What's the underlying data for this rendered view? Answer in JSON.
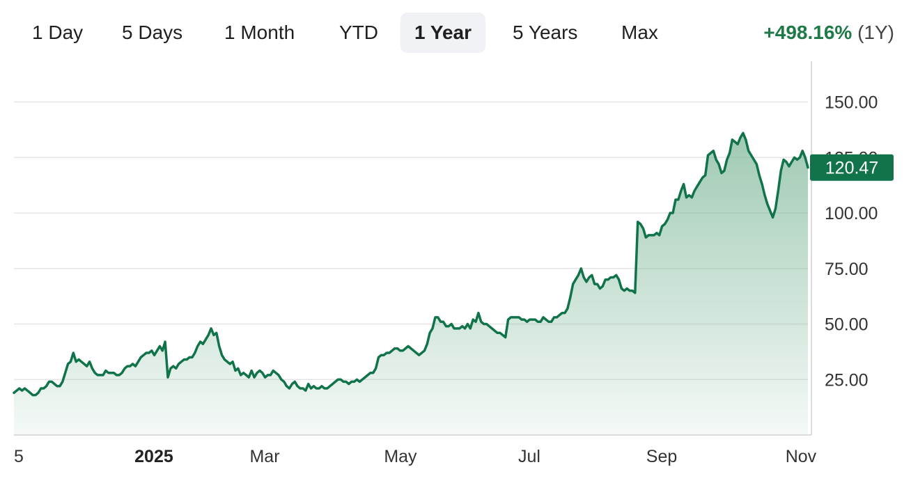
{
  "range_tabs": [
    {
      "label": "1 Day",
      "active": false
    },
    {
      "label": "5 Days",
      "active": false
    },
    {
      "label": "1 Month",
      "active": false
    },
    {
      "label": "YTD",
      "active": false
    },
    {
      "label": "1 Year",
      "active": true
    },
    {
      "label": "5 Years",
      "active": false
    },
    {
      "label": "Max",
      "active": false
    }
  ],
  "change": {
    "percent": "+498.16%",
    "period": "(1Y)"
  },
  "colors": {
    "up": "#1e7a46",
    "line": "#11734a",
    "fill": "#7fb89a",
    "grid": "#e5e5e5"
  },
  "chart_data": {
    "type": "area",
    "y_ticks": [
      "150.00",
      "125.00",
      "100.00",
      "75.00",
      "50.00",
      "25.00"
    ],
    "y_tick_values": [
      150,
      125,
      100,
      75,
      50,
      25
    ],
    "ylim": [
      0,
      165
    ],
    "x_ticks": [
      {
        "label": "5",
        "pos": 0,
        "bold": false
      },
      {
        "label": "2025",
        "pos": 0.1763,
        "bold": true
      },
      {
        "label": "Mar",
        "pos": 0.3158,
        "bold": false
      },
      {
        "label": "May",
        "pos": 0.4868,
        "bold": false
      },
      {
        "label": "Jul",
        "pos": 0.6491,
        "bold": false
      },
      {
        "label": "Sep",
        "pos": 0.8158,
        "bold": false
      },
      {
        "label": "Nov",
        "pos": 0.9912,
        "bold": false
      }
    ],
    "current_price": "120.47",
    "current_value": 120.47,
    "grid": true,
    "series": [
      {
        "values": [
          19,
          20,
          21,
          20,
          21,
          20,
          19,
          18,
          18,
          19,
          21,
          21,
          22,
          24,
          24,
          23,
          22,
          22,
          24,
          28,
          32,
          33,
          37,
          33,
          34,
          33,
          32,
          31,
          33,
          30,
          28,
          27,
          27,
          27,
          29,
          28,
          28,
          28,
          27,
          27,
          28,
          30,
          31,
          31,
          32,
          31,
          33,
          35,
          36,
          37,
          37,
          38,
          36,
          38,
          40,
          38,
          42,
          26,
          30,
          31,
          30,
          32,
          33,
          34,
          34,
          35,
          35,
          37,
          40,
          42,
          41,
          43,
          45,
          48,
          45,
          46,
          40,
          36,
          34,
          33,
          32,
          33,
          29,
          30,
          27,
          28,
          27,
          26,
          29,
          26,
          28,
          29,
          28,
          26,
          27,
          27,
          29,
          28,
          27,
          25,
          24,
          22,
          21,
          23,
          24,
          22,
          21,
          21,
          20,
          23,
          21,
          22,
          21,
          21,
          22,
          21,
          21,
          22,
          23,
          24,
          25,
          25,
          24,
          24,
          23,
          24,
          24,
          25,
          24,
          25,
          26,
          27,
          28,
          28,
          30,
          35,
          36,
          36,
          37,
          37,
          38,
          39,
          39,
          38,
          38,
          39,
          40,
          39,
          38,
          37,
          36,
          37,
          38,
          41,
          46,
          48,
          53,
          53,
          51,
          51,
          49,
          49,
          50,
          48,
          48,
          48,
          49,
          48,
          50,
          48,
          52,
          51,
          55,
          51,
          50,
          50,
          49,
          48,
          47,
          46,
          46,
          45,
          44,
          52,
          53,
          53,
          53,
          53,
          52,
          52,
          51,
          52,
          52,
          52,
          51,
          51,
          53,
          52,
          51,
          51,
          53,
          53,
          54,
          55,
          55,
          57,
          62,
          68,
          70,
          72,
          75,
          71,
          69,
          71,
          72,
          68,
          68,
          66,
          67,
          70,
          70,
          71,
          71,
          72,
          70,
          66,
          65,
          66,
          65,
          65,
          64,
          96,
          95,
          93,
          89,
          90,
          90,
          90,
          91,
          90,
          94,
          95,
          97,
          100,
          100,
          106,
          106,
          110,
          113,
          107,
          108,
          107,
          110,
          112,
          114,
          116,
          117,
          126,
          127,
          128,
          124,
          122,
          118,
          119,
          124,
          127,
          133,
          132,
          131,
          134,
          136,
          133,
          128,
          126,
          124,
          122,
          117,
          113,
          108,
          104,
          101,
          98,
          102,
          110,
          119,
          124,
          123,
          121,
          123,
          125,
          124,
          125,
          128,
          125,
          120.47
        ]
      }
    ]
  }
}
